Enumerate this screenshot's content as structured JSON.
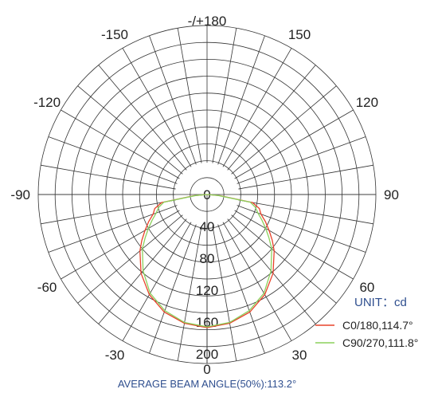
{
  "chart_data": {
    "type": "polar",
    "title": "",
    "unit_text": "UNIT：cd",
    "angle_labels": [
      {
        "value": 180,
        "text": "-/+180"
      },
      {
        "value": -150,
        "text": "-150"
      },
      {
        "value": 150,
        "text": "150"
      },
      {
        "value": -120,
        "text": "-120"
      },
      {
        "value": 120,
        "text": "120"
      },
      {
        "value": -90,
        "text": "-90"
      },
      {
        "value": 90,
        "text": "90"
      },
      {
        "value": -60,
        "text": "-60"
      },
      {
        "value": 60,
        "text": "60"
      },
      {
        "value": -30,
        "text": "-30"
      },
      {
        "value": 30,
        "text": "30"
      },
      {
        "value": 0,
        "text": "0"
      }
    ],
    "radial_ticks": [
      {
        "value": 0,
        "text": "0"
      },
      {
        "value": 40,
        "text": "40"
      },
      {
        "value": 80,
        "text": "80"
      },
      {
        "value": 120,
        "text": "120"
      },
      {
        "value": 160,
        "text": "160"
      },
      {
        "value": 200,
        "text": "200"
      }
    ],
    "radial_max": 200,
    "grid": true,
    "legend_position": "bottom-right",
    "angles": [
      0,
      10,
      20,
      30,
      40,
      50,
      55,
      60,
      65,
      70,
      75,
      80,
      85,
      90
    ],
    "series": [
      {
        "name": "C0/180,114.7°",
        "color": "#e8432a",
        "values": [
          167,
          164,
          157,
          145,
          129,
          110,
          100,
          90,
          81,
          72,
          68,
          58,
          16,
          0
        ]
      },
      {
        "name": "C90/270,111.8°",
        "color": "#8bd05c",
        "values": [
          166,
          163,
          155,
          143,
          125,
          106,
          95,
          85,
          76,
          68,
          63,
          55,
          14,
          0
        ]
      }
    ],
    "footer_text": "AVERAGE BEAM ANGLE(50%):113.2°"
  }
}
